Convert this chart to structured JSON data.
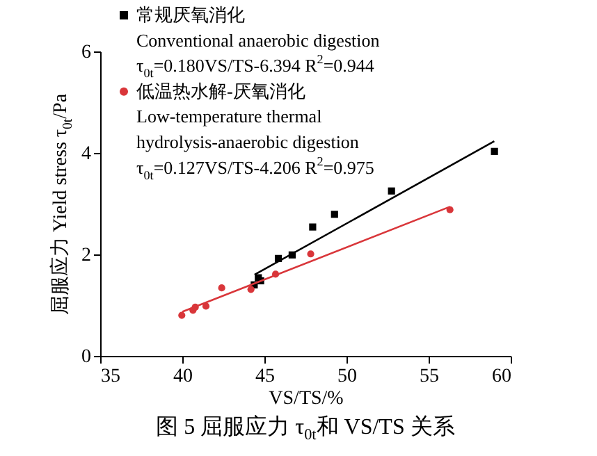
{
  "chart_data": {
    "type": "scatter",
    "title": "图 5   屈服应力 τ$_{0t}$和 VS/TS 关系",
    "xlabel": "VS/TS/%",
    "ylabel": "屈服应力 Yield stress τ$_{0t}$/Pa",
    "xlim": [
      35,
      60
    ],
    "xticks": [
      35,
      40,
      45,
      50,
      55,
      60
    ],
    "ylim": [
      0,
      6
    ],
    "yticks": [
      0,
      2,
      4,
      6
    ],
    "grid": false,
    "legend": "top left",
    "series": [
      {
        "name": "常规厌氧消化\nConventional anaerobic digestion\nτ$_{0t}$=0.180VS/TS-6.394  R$^{2}$=0.944",
        "type": "scatter",
        "marker": "square",
        "color": "#000000",
        "x": [
          44.38,
          44.63,
          44.77,
          45.85,
          46.69,
          47.94,
          49.27,
          52.74,
          59.01
        ],
        "values": [
          1.4,
          1.54,
          1.48,
          1.92,
          1.99,
          2.54,
          2.79,
          3.25,
          4.03
        ]
      },
      {
        "name": "低温热水解-厌氧消化\nLow-temperature thermal\nhydrolysis-anaerobic digestion\nτ$_{0t}$=0.127VS/TS-4.206  R$^{2}$=0.975",
        "type": "scatter",
        "marker": "circle",
        "color": "#d9363a",
        "x": [
          39.97,
          40.65,
          40.79,
          41.44,
          42.4,
          44.18,
          45.68,
          47.82,
          56.3
        ],
        "values": [
          0.8,
          0.9,
          0.96,
          0.98,
          1.34,
          1.31,
          1.61,
          2.01,
          2.88
        ]
      },
      {
        "type": "line",
        "color": "#000000",
        "x": [
          44.4,
          59
        ],
        "values": [
          1.6,
          4.23
        ]
      },
      {
        "type": "line",
        "color": "#d9363a",
        "x": [
          40,
          56.3
        ],
        "values": [
          0.87,
          2.94
        ]
      }
    ]
  }
}
